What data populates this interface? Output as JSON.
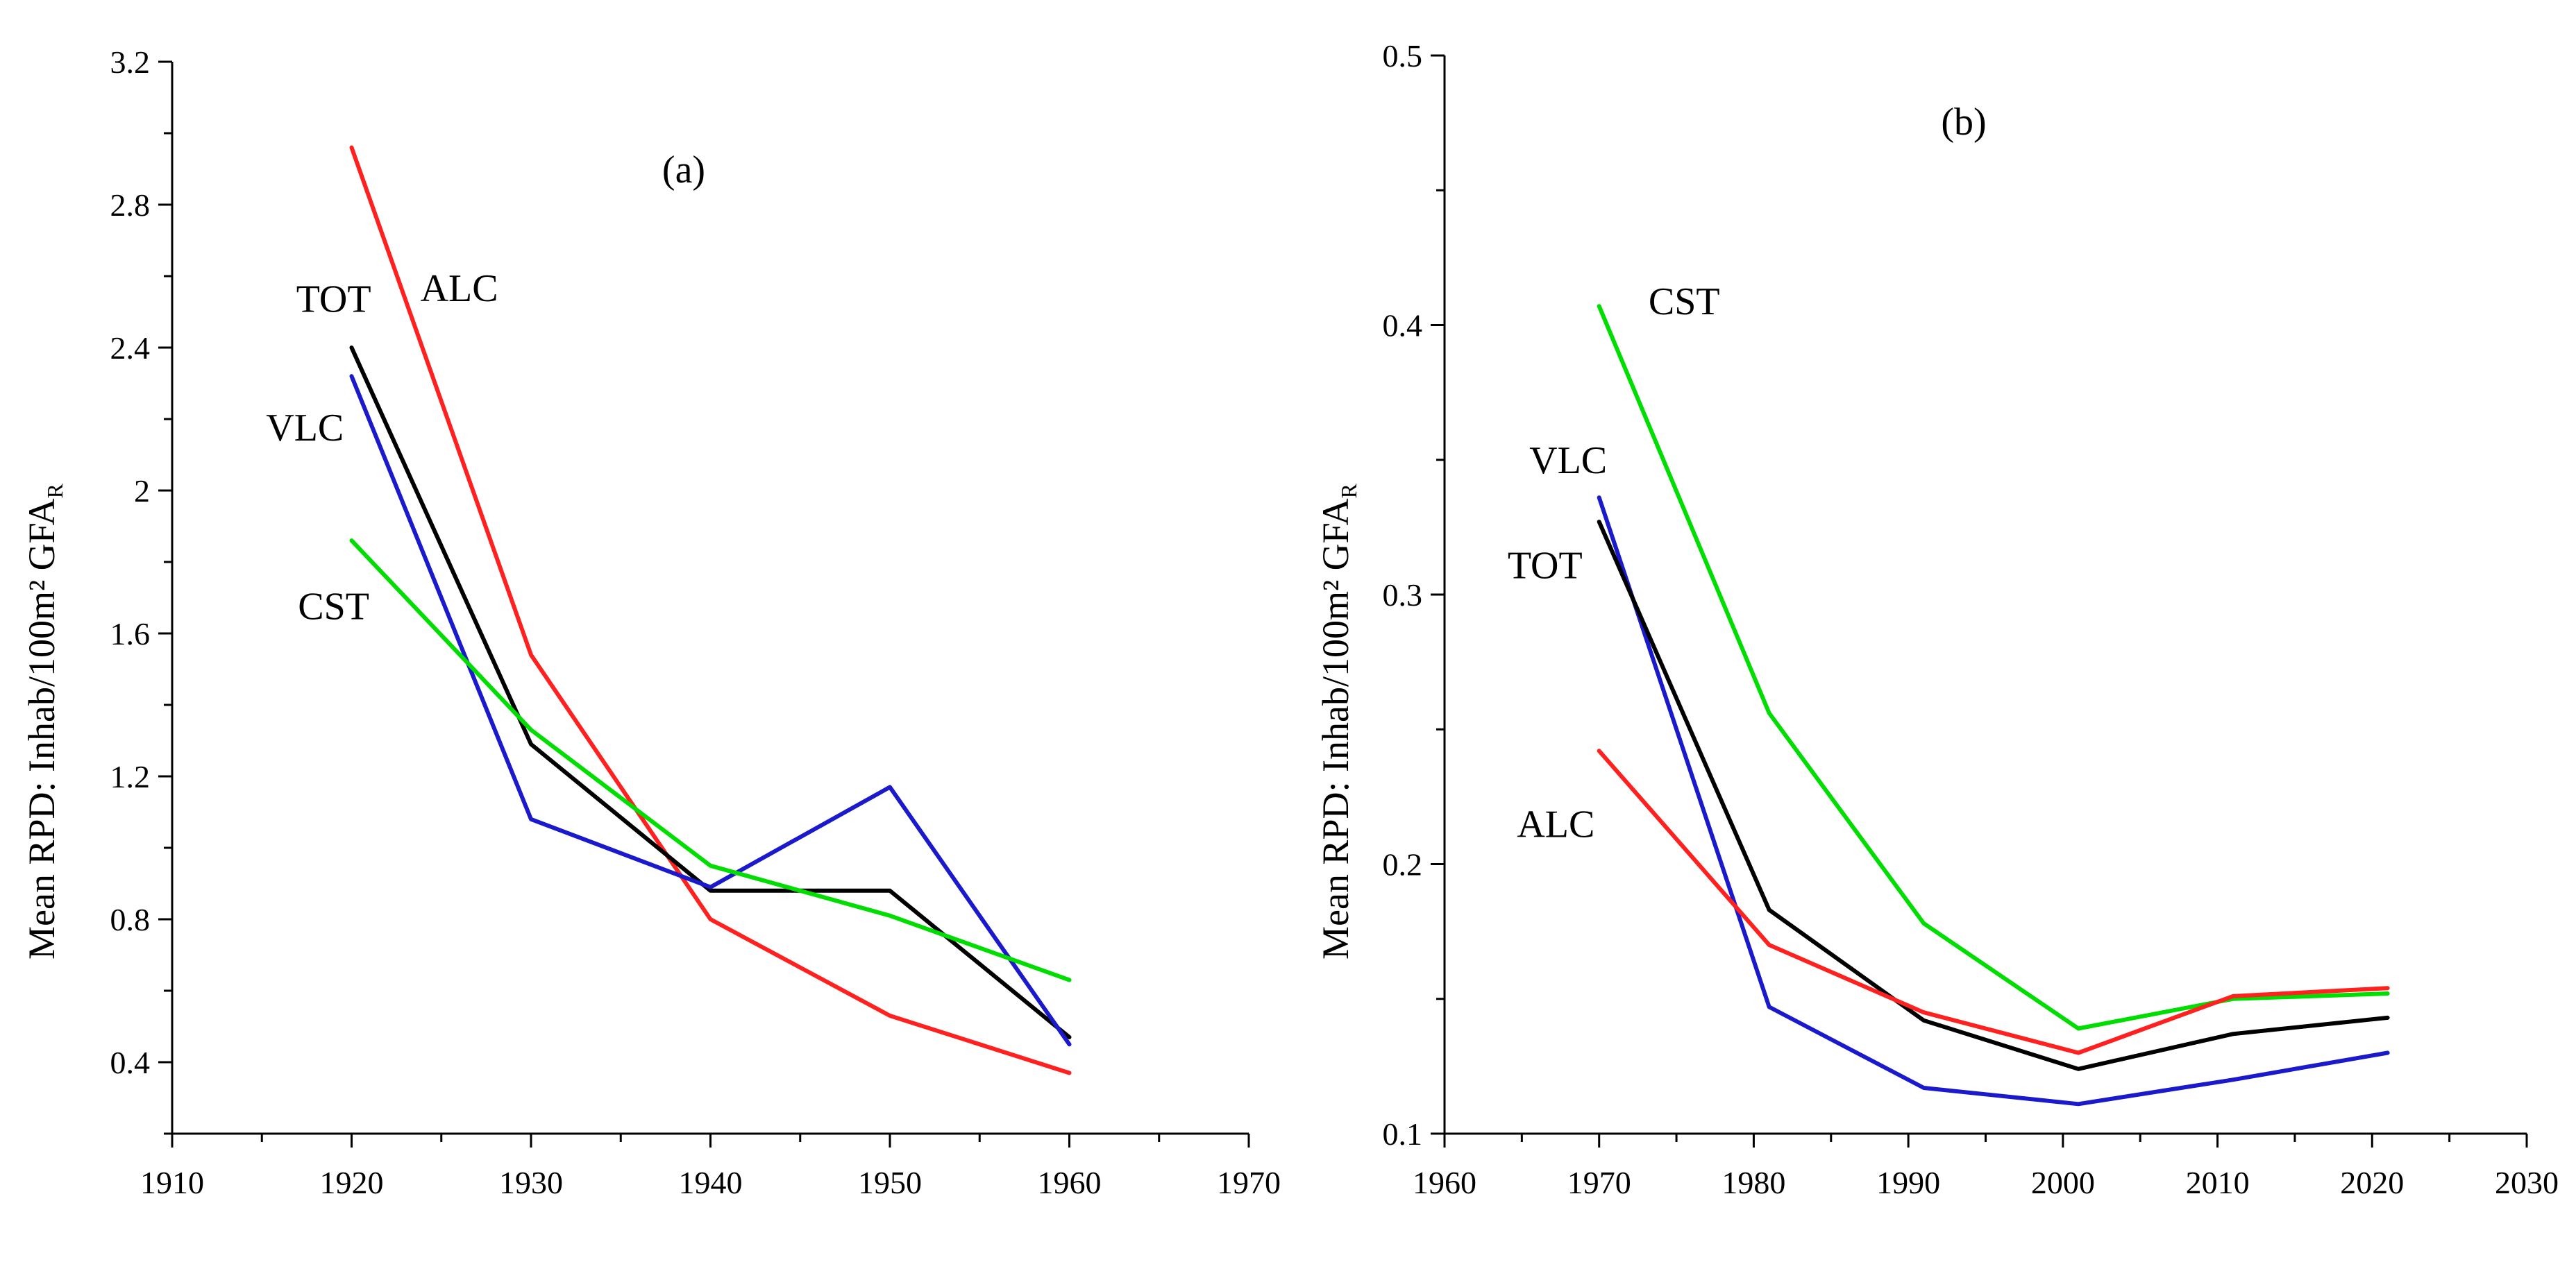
{
  "chart_data": [
    {
      "type": "line",
      "title": "(a)",
      "xlabel": "",
      "ylabel": "Mean RPD: Inhab/100m² GFA",
      "ylabel_sub": "R",
      "xlim": [
        1910,
        1970
      ],
      "ylim": [
        0.2,
        3.2
      ],
      "x_ticks": [
        1910,
        1920,
        1930,
        1940,
        1950,
        1960,
        1970
      ],
      "x_minor_step": 5,
      "y_ticks": [
        0.4,
        0.8,
        1.2,
        1.6,
        2.0,
        2.4,
        2.8,
        3.2
      ],
      "y_tick_labels": [
        "0.4",
        "0.8",
        "1.2",
        "1.6",
        "2",
        "2.4",
        "2.8",
        "3.2"
      ],
      "y_minor_step": 0.2,
      "series": [
        {
          "name": "ALC",
          "color": "#ff2020",
          "x": [
            1920,
            1930,
            1940,
            1950,
            1960
          ],
          "values": [
            2.96,
            1.54,
            0.8,
            0.53,
            0.37
          ],
          "label_at": [
            1926,
            2.53
          ]
        },
        {
          "name": "TOT",
          "color": "#000000",
          "x": [
            1920,
            1930,
            1940,
            1950,
            1960
          ],
          "values": [
            2.4,
            1.29,
            0.88,
            0.88,
            0.47
          ],
          "label_at": [
            1919,
            2.5
          ]
        },
        {
          "name": "VLC",
          "color": "#1a1acc",
          "x": [
            1920,
            1930,
            1940,
            1950,
            1960
          ],
          "values": [
            2.32,
            1.08,
            0.89,
            1.17,
            0.45
          ],
          "label_at": [
            1917.4,
            2.14
          ]
        },
        {
          "name": "CST",
          "color": "#00dd00",
          "x": [
            1920,
            1930,
            1940,
            1950,
            1960
          ],
          "values": [
            1.86,
            1.33,
            0.95,
            0.81,
            0.63
          ],
          "label_at": [
            1919,
            1.64
          ]
        }
      ]
    },
    {
      "type": "line",
      "title": "(b)",
      "xlabel": "",
      "ylabel": "Mean RPD: Inhab/100m² GFA",
      "ylabel_sub": "R",
      "xlim": [
        1960,
        2030
      ],
      "ylim": [
        0.1,
        0.5
      ],
      "x_ticks": [
        1960,
        1970,
        1980,
        1990,
        2000,
        2010,
        2020,
        2030
      ],
      "x_minor_step": 5,
      "y_ticks": [
        0.1,
        0.2,
        0.3,
        0.4,
        0.5
      ],
      "y_tick_labels": [
        "0.1",
        "0.2",
        "0.3",
        "0.4",
        "0.5"
      ],
      "y_minor_step": 0.05,
      "series": [
        {
          "name": "CST",
          "color": "#00dd00",
          "x": [
            1970,
            1981,
            1991,
            2001,
            2011,
            2021
          ],
          "values": [
            0.407,
            0.256,
            0.178,
            0.139,
            0.15,
            0.152
          ],
          "label_at": [
            1975.5,
            0.404
          ]
        },
        {
          "name": "VLC",
          "color": "#1a1acc",
          "x": [
            1970,
            1981,
            1991,
            2001,
            2011,
            2021
          ],
          "values": [
            0.336,
            0.147,
            0.117,
            0.111,
            0.12,
            0.13
          ],
          "label_at": [
            1968,
            0.345
          ]
        },
        {
          "name": "TOT",
          "color": "#000000",
          "x": [
            1970,
            1981,
            1991,
            2001,
            2011,
            2021
          ],
          "values": [
            0.327,
            0.183,
            0.142,
            0.124,
            0.137,
            0.143
          ],
          "label_at": [
            1966.5,
            0.306
          ]
        },
        {
          "name": "ALC",
          "color": "#ff2020",
          "x": [
            1970,
            1981,
            1991,
            2001,
            2011,
            2021
          ],
          "values": [
            0.242,
            0.17,
            0.145,
            0.13,
            0.151,
            0.154
          ],
          "label_at": [
            1967.2,
            0.21
          ]
        }
      ]
    }
  ]
}
